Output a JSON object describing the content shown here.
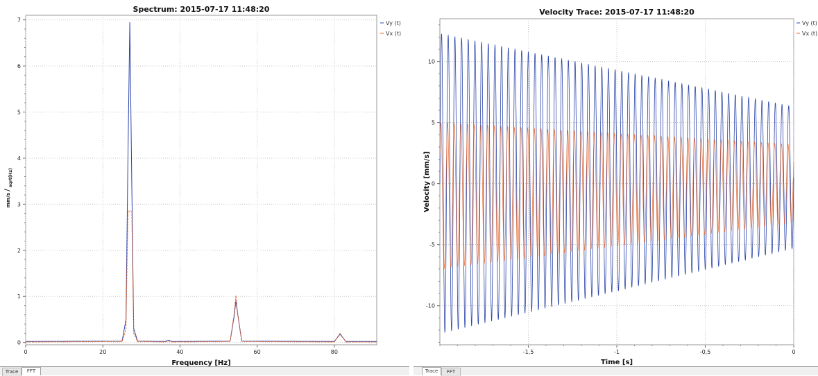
{
  "charts": [
    {
      "title": "Spectrum: 2015-07-17 11:48:20",
      "tabs": [
        "Trace",
        "FFT"
      ],
      "active_tab": 1
    },
    {
      "title": "Velocity Trace: 2015-07-17 11:48:20",
      "tabs": [
        "Trace",
        "FFT"
      ],
      "active_tab": 0
    }
  ],
  "chart_data": [
    {
      "type": "line",
      "title": "Spectrum: 2015-07-17 11:48:20",
      "xlabel": "Frequency [Hz]",
      "ylabel_num": "mm/s",
      "ylabel_den": "sqrt(Hz)",
      "xlim": [
        0,
        91
      ],
      "ylim": [
        -0.05,
        7.1
      ],
      "xticks": [
        0,
        20,
        40,
        60,
        80
      ],
      "yticks": [
        0,
        1,
        2,
        3,
        4,
        5,
        6,
        7
      ],
      "grid": true,
      "legend_position": "top-right",
      "series": [
        {
          "name": "Vy (t)",
          "color": "#2b44a8",
          "x": [
            0,
            25,
            26,
            26.5,
            27,
            27.5,
            28,
            29,
            36,
            37,
            38,
            53,
            54,
            54.5,
            55,
            56,
            80,
            81.5,
            83,
            91
          ],
          "y": [
            0.02,
            0.03,
            0.5,
            4.0,
            6.95,
            3.5,
            0.3,
            0.03,
            0.02,
            0.05,
            0.02,
            0.03,
            0.55,
            0.9,
            0.6,
            0.03,
            0.02,
            0.18,
            0.02,
            0.02
          ]
        },
        {
          "name": "Vx (t)",
          "color": "#e8662a",
          "x": [
            0,
            25,
            26,
            26.5,
            27,
            27.5,
            28,
            29,
            36,
            37,
            38,
            53,
            54,
            54.5,
            55,
            56,
            80,
            81.5,
            83,
            91
          ],
          "y": [
            0.01,
            0.02,
            0.3,
            2.85,
            2.85,
            2.85,
            0.2,
            0.02,
            0.01,
            0.03,
            0.01,
            0.02,
            0.6,
            1.02,
            0.6,
            0.02,
            0.01,
            0.2,
            0.01,
            0.01
          ]
        }
      ]
    },
    {
      "type": "line",
      "title": "Velocity Trace: 2015-07-17 11:48:20",
      "xlabel": "Time [s]",
      "ylabel": "Velocity [mm/s]",
      "xlim": [
        -2.0,
        0
      ],
      "ylim": [
        -13.2,
        13.5
      ],
      "xticks": [
        -1.5,
        -1,
        -0.5,
        0
      ],
      "xtick_labels": [
        "-1,5",
        "-1",
        "-0,5",
        "0"
      ],
      "yticks": [
        -10,
        -5,
        0,
        5,
        10
      ],
      "grid": true,
      "legend_position": "top-right",
      "series": [
        {
          "name": "Vy (t)",
          "color": "#2b44a8",
          "frequency_hz": 26.5,
          "amplitude_start": 12.3,
          "amplitude_end": 5.8,
          "offset_start": 0,
          "offset_end": 0.5
        },
        {
          "name": "Vx (t)",
          "color": "#e8662a",
          "frequency_hz": 26.5,
          "amplitude_start": 6.0,
          "amplitude_end": 3.2,
          "offset_start": -1.0,
          "offset_end": 0
        }
      ]
    }
  ]
}
